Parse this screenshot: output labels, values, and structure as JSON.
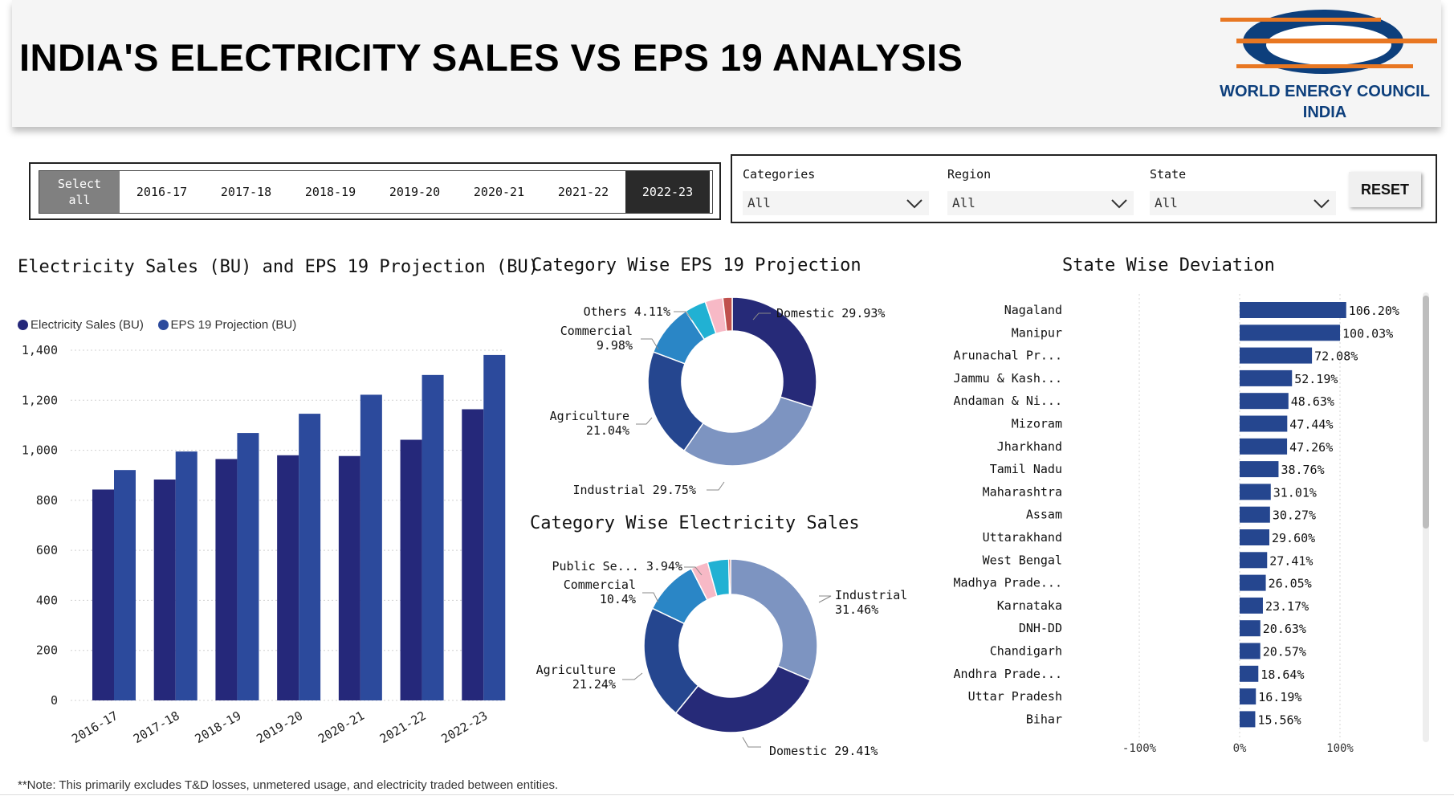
{
  "header": {
    "title": "INDIA'S ELECTRICITY SALES VS EPS 19 ANALYSIS"
  },
  "logo": {
    "line1": "WORLD ENERGY COUNCIL",
    "line2": "INDIA",
    "colors": {
      "navy": "#0d3f7c",
      "orange": "#e87722"
    }
  },
  "year_slicer": {
    "select_all_line1": "Select",
    "select_all_line2": "all",
    "years": [
      "2016-17",
      "2017-18",
      "2018-19",
      "2019-20",
      "2020-21",
      "2021-22",
      "2022-23"
    ],
    "selected": "2022-23"
  },
  "filters": {
    "categories": {
      "label": "Categories",
      "value": "All"
    },
    "region": {
      "label": "Region",
      "value": "All"
    },
    "state": {
      "label": "State",
      "value": "All"
    },
    "reset_label": "RESET"
  },
  "chart_data": [
    {
      "type": "bar",
      "title": "Electricity Sales (BU) and EPS 19 Projection (BU)",
      "categories": [
        "2016-17",
        "2017-18",
        "2018-19",
        "2019-20",
        "2020-21",
        "2021-22",
        "2022-23"
      ],
      "series": [
        {
          "name": "Electricity Sales (BU)",
          "color": "#25287a",
          "values": [
            843,
            883,
            965,
            980,
            977,
            1042,
            1164
          ]
        },
        {
          "name": "EPS 19 Projection (BU)",
          "color": "#2c4a9c",
          "values": [
            921,
            995,
            1069,
            1146,
            1222,
            1301,
            1381
          ]
        }
      ],
      "yticks": [
        "0",
        "200",
        "400",
        "600",
        "800",
        "1,000",
        "1,200",
        "1,400"
      ],
      "ylim": [
        0,
        1400
      ],
      "grid": true,
      "legend": "top-left"
    },
    {
      "type": "pie",
      "title": "Category Wise EPS 19 Projection",
      "slices": [
        {
          "label": "Domestic",
          "value": 29.93,
          "display": "29.93%",
          "color": "#262a78"
        },
        {
          "label": "Industrial",
          "value": 29.75,
          "display": "29.75%",
          "color": "#7d94c1"
        },
        {
          "label": "Agriculture",
          "value": 21.04,
          "display": "21.04%",
          "color": "#25468f"
        },
        {
          "label": "Commercial",
          "value": 9.98,
          "display": "9.98%",
          "color": "#2a86c6"
        },
        {
          "label": "Others",
          "value": 4.11,
          "display": "4.11%",
          "color": "#21b1d3"
        },
        {
          "label": "",
          "value": 3.4,
          "display": "",
          "color": "#f7b9c6"
        },
        {
          "label": "",
          "value": 1.79,
          "display": "",
          "color": "#c0504d"
        }
      ]
    },
    {
      "type": "pie",
      "title": "Category Wise Electricity Sales",
      "slices": [
        {
          "label": "Industrial",
          "value": 31.46,
          "display": "31.46%",
          "color": "#7d94c1"
        },
        {
          "label": "Domestic",
          "value": 29.41,
          "display": "29.41%",
          "color": "#262a78"
        },
        {
          "label": "Agriculture",
          "value": 21.24,
          "display": "21.24%",
          "color": "#25468f"
        },
        {
          "label": "Commercial",
          "value": 10.4,
          "display": "10.4%",
          "color": "#2a86c6"
        },
        {
          "label": "",
          "value": 3.2,
          "display": "",
          "color": "#f7b9c6"
        },
        {
          "label": "Public Se...",
          "value": 3.94,
          "display": "3.94%",
          "color": "#21b1d3"
        },
        {
          "label": "",
          "value": 0.35,
          "display": "",
          "color": "#c0504d"
        }
      ]
    },
    {
      "type": "bar",
      "orientation": "horizontal",
      "title": "State Wise Deviation",
      "categories": [
        "Nagaland",
        "Manipur",
        "Arunachal Pr...",
        "Jammu & Kash...",
        "Andaman & Ni...",
        "Mizoram",
        "Jharkhand",
        "Tamil Nadu",
        "Maharashtra",
        "Assam",
        "Uttarakhand",
        "West Bengal",
        "Madhya Prade...",
        "Karnataka",
        "DNH-DD",
        "Chandigarh",
        "Andhra Prade...",
        "Uttar Pradesh",
        "Bihar"
      ],
      "values": [
        106.2,
        100.03,
        72.08,
        52.19,
        48.63,
        47.44,
        47.26,
        38.76,
        31.01,
        30.27,
        29.6,
        27.41,
        26.05,
        23.17,
        20.63,
        20.57,
        18.64,
        16.19,
        15.56
      ],
      "labels": [
        "106.20%",
        "100.03%",
        "72.08%",
        "52.19%",
        "48.63%",
        "47.44%",
        "47.26%",
        "38.76%",
        "31.01%",
        "30.27%",
        "29.60%",
        "27.41%",
        "26.05%",
        "23.17%",
        "20.63%",
        "20.57%",
        "18.64%",
        "16.19%",
        "15.56%"
      ],
      "color": "#25468f",
      "xticks": [
        "-100%",
        "0%",
        "100%"
      ],
      "xlim": [
        -100,
        100
      ]
    }
  ],
  "footnote": "**Note: This primarily excludes T&D losses, unmetered usage, and electricity traded between entities."
}
